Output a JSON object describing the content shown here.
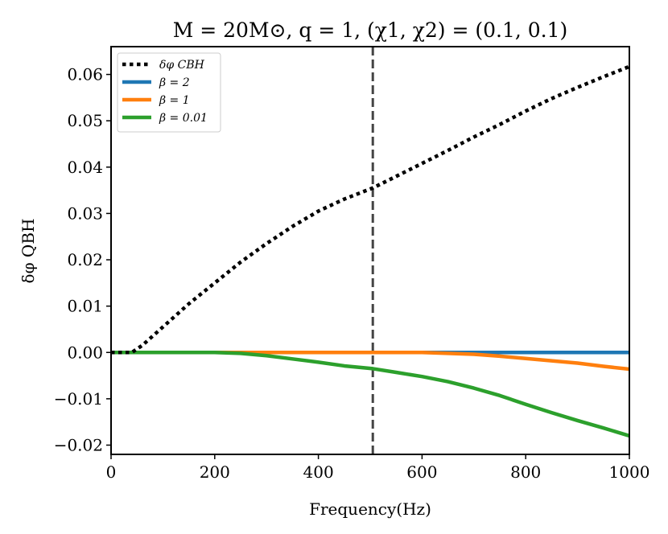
{
  "chart_data": {
    "type": "line",
    "title": "M = 20M⊙, q = 1, (χ1, χ2) = (0.1, 0.1)",
    "xlabel": "Frequency(Hz)",
    "ylabel": "δφ QBH",
    "xlim": [
      0,
      1000
    ],
    "ylim": [
      -0.022,
      0.066
    ],
    "x_ticks": [
      0,
      200,
      400,
      600,
      800,
      1000
    ],
    "x_tick_labels": [
      "0",
      "200",
      "400",
      "600",
      "800",
      "1000"
    ],
    "y_ticks": [
      -0.02,
      -0.01,
      0.0,
      0.01,
      0.02,
      0.03,
      0.04,
      0.05,
      0.06
    ],
    "y_tick_labels": [
      "−0.02",
      "−0.01",
      "0.00",
      "0.01",
      "0.02",
      "0.03",
      "0.04",
      "0.05",
      "0.06"
    ],
    "vline": {
      "x": 505,
      "color": "#444444",
      "style": "dashed"
    },
    "legend_position": "top-left",
    "series": [
      {
        "name": "δφ CBH",
        "color": "#000000",
        "style": "dotted",
        "points": [
          [
            0,
            0
          ],
          [
            20,
            0
          ],
          [
            40,
            0.0
          ],
          [
            60,
            0.0015
          ],
          [
            100,
            0.0055
          ],
          [
            150,
            0.0105
          ],
          [
            200,
            0.015
          ],
          [
            250,
            0.0195
          ],
          [
            300,
            0.0235
          ],
          [
            350,
            0.0272
          ],
          [
            400,
            0.0305
          ],
          [
            450,
            0.0331
          ],
          [
            505,
            0.0355
          ],
          [
            550,
            0.038
          ],
          [
            600,
            0.0408
          ],
          [
            650,
            0.0436
          ],
          [
            700,
            0.0465
          ],
          [
            750,
            0.0492
          ],
          [
            800,
            0.0521
          ],
          [
            850,
            0.0548
          ],
          [
            900,
            0.0572
          ],
          [
            950,
            0.0595
          ],
          [
            1000,
            0.0617
          ]
        ]
      },
      {
        "name": "β = 2",
        "color": "#1f77b4",
        "style": "solid",
        "points": [
          [
            0,
            0
          ],
          [
            1000,
            0
          ]
        ]
      },
      {
        "name": "β = 1",
        "color": "#ff7f0e",
        "style": "solid",
        "points": [
          [
            0,
            0
          ],
          [
            500,
            0
          ],
          [
            600,
            0.0
          ],
          [
            650,
            -0.0002
          ],
          [
            700,
            -0.0004
          ],
          [
            750,
            -0.0008
          ],
          [
            800,
            -0.0013
          ],
          [
            850,
            -0.0018
          ],
          [
            900,
            -0.0023
          ],
          [
            950,
            -0.003
          ],
          [
            1000,
            -0.0036
          ]
        ]
      },
      {
        "name": "β = 0.01",
        "color": "#2ca02c",
        "style": "solid",
        "points": [
          [
            0,
            0
          ],
          [
            100,
            0
          ],
          [
            200,
            0
          ],
          [
            250,
            -0.0002
          ],
          [
            300,
            -0.0007
          ],
          [
            350,
            -0.0014
          ],
          [
            400,
            -0.0021
          ],
          [
            450,
            -0.0029
          ],
          [
            505,
            -0.0035
          ],
          [
            550,
            -0.0043
          ],
          [
            600,
            -0.0052
          ],
          [
            650,
            -0.0063
          ],
          [
            700,
            -0.0077
          ],
          [
            750,
            -0.0093
          ],
          [
            800,
            -0.0112
          ],
          [
            850,
            -0.013
          ],
          [
            900,
            -0.0147
          ],
          [
            950,
            -0.0163
          ],
          [
            1000,
            -0.018
          ]
        ]
      }
    ]
  }
}
